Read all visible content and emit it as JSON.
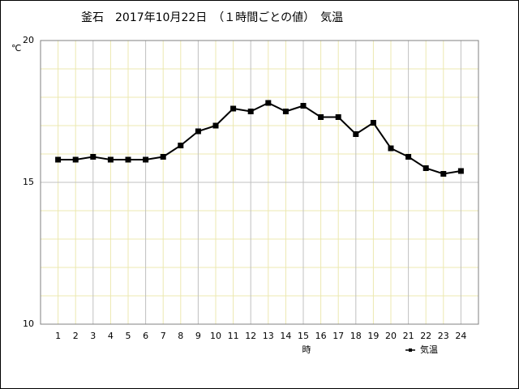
{
  "chart_data": {
    "type": "line",
    "title": "釜石　2017年10月22日　（１時間ごとの値）　気温",
    "y_label": "℃",
    "x_label": "時",
    "x": [
      1,
      2,
      3,
      4,
      5,
      6,
      7,
      8,
      9,
      10,
      11,
      12,
      13,
      14,
      15,
      16,
      17,
      18,
      19,
      20,
      21,
      22,
      23,
      24
    ],
    "series": [
      {
        "name": "気温",
        "color": "#000000",
        "values": [
          15.8,
          15.8,
          15.9,
          15.8,
          15.8,
          15.8,
          15.9,
          16.3,
          16.8,
          17.0,
          17.6,
          17.5,
          17.8,
          17.5,
          17.7,
          17.3,
          17.3,
          16.7,
          17.1,
          16.2,
          15.9,
          15.5,
          15.3,
          15.4
        ]
      }
    ],
    "xlim": [
      0,
      25
    ],
    "xticks": [
      1,
      2,
      3,
      4,
      5,
      6,
      7,
      8,
      9,
      10,
      11,
      12,
      13,
      14,
      15,
      16,
      17,
      18,
      19,
      20,
      21,
      22,
      23,
      24
    ],
    "ylim": [
      10,
      20
    ],
    "yticks": [
      10,
      15,
      20
    ],
    "yticks_minor": [
      11,
      12,
      13,
      14,
      16,
      17,
      18,
      19
    ],
    "grid": true,
    "legend": "bottom-right"
  }
}
